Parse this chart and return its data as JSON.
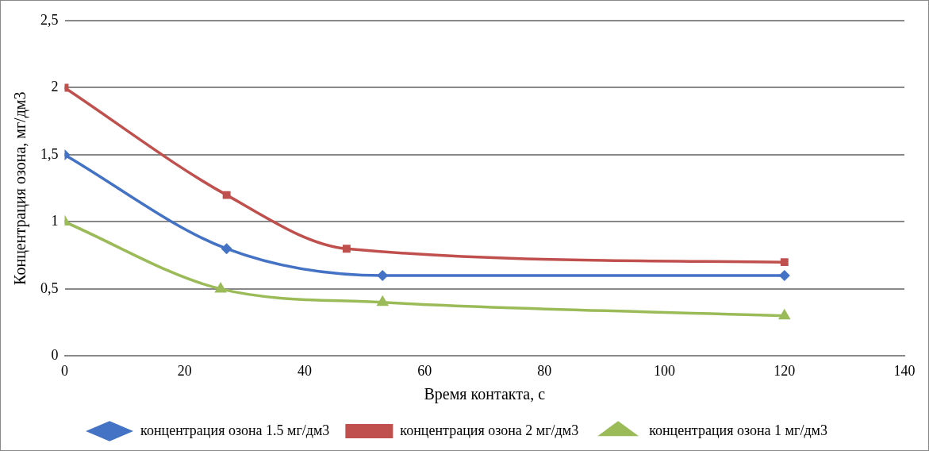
{
  "chart_data": {
    "type": "line",
    "xlabel": "Время контакта, с",
    "ylabel": "Концентрация озона, мг/дм3",
    "xlim": [
      0,
      140
    ],
    "xticks": [
      0,
      20,
      40,
      60,
      80,
      100,
      120,
      140
    ],
    "ylim": [
      0,
      2.5
    ],
    "yticks": [
      0,
      {
        "value": 0.5,
        "label": "0,5"
      },
      1,
      {
        "value": 1.5,
        "label": "1,5"
      },
      2,
      {
        "value": 2.5,
        "label": "2,5"
      }
    ],
    "grid": "y",
    "legend": "bottom",
    "line_style": "solid",
    "series": [
      {
        "name": "концентрация озона 1.5 мг/дм3",
        "color": "#4472c4",
        "marker": "diamond",
        "x": [
          0,
          27,
          53,
          120
        ],
        "values": [
          1.5,
          0.8,
          0.6,
          0.6
        ]
      },
      {
        "name": "концентрация озона 2 мг/дм3",
        "color": "#c0504d",
        "marker": "square",
        "x": [
          0,
          27,
          47,
          120
        ],
        "values": [
          2,
          1.2,
          0.8,
          0.7
        ]
      },
      {
        "name": "концентрация озона 1 мг/дм3",
        "color": "#9bbb59",
        "marker": "triangle",
        "x": [
          0,
          26,
          53,
          120
        ],
        "values": [
          1,
          0.5,
          0.4,
          0.3
        ]
      }
    ]
  }
}
